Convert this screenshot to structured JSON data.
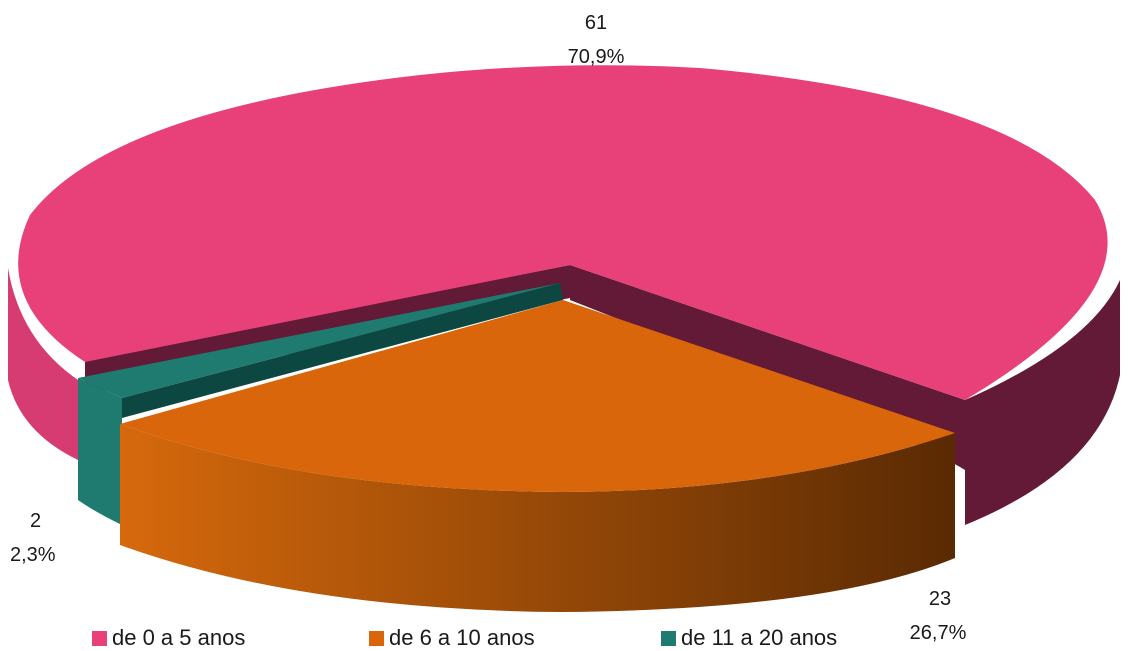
{
  "chart_data": {
    "type": "pie",
    "variant": "3d-exploded",
    "title": "",
    "series": [
      {
        "name": "de 0 a 5 anos",
        "value": 61,
        "percent": "70,9%",
        "color": "#E8417A",
        "side_color": "#631A36",
        "side_light": "#D63C72"
      },
      {
        "name": "de 6 a 10 anos",
        "value": 23,
        "percent": "26,7%",
        "color": "#D9660A",
        "side_color": "#5C2B03",
        "side_light": "#D6690C"
      },
      {
        "name": "de 11 a 20 anos",
        "value": 2,
        "percent": "2,3%",
        "color": "#1F7A70",
        "side_color": "#0D4741",
        "side_light": "#1F7A70"
      }
    ],
    "legend": {
      "position": "bottom"
    }
  }
}
